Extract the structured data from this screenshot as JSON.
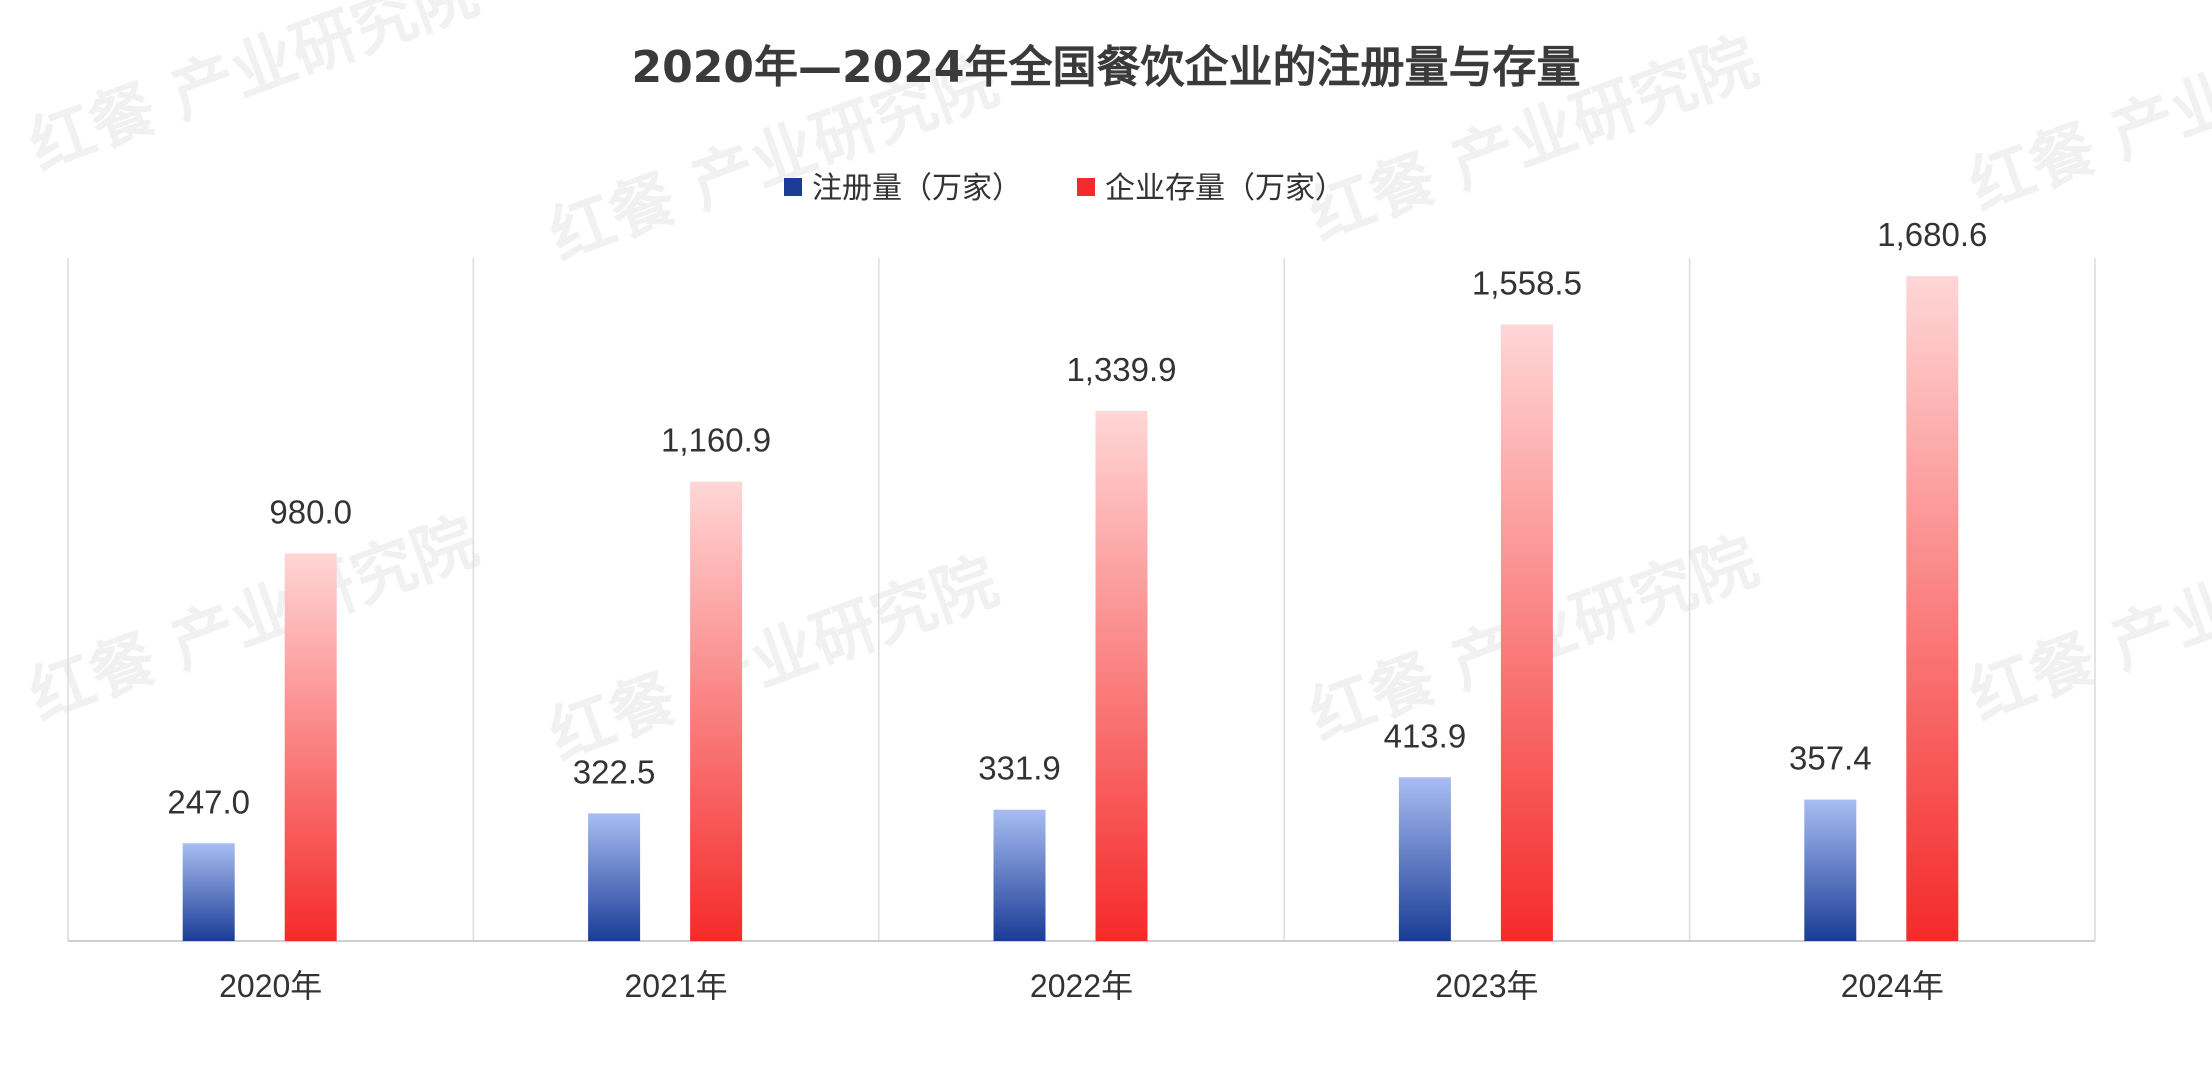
{
  "chart_data": {
    "type": "bar",
    "title": "2020年—2024年全国餐饮企业的注册量与存量",
    "categories": [
      "2020年",
      "2021年",
      "2022年",
      "2023年",
      "2024年"
    ],
    "series": [
      {
        "name": "注册量（万家）",
        "values": [
          247.0,
          322.5,
          331.9,
          413.9,
          357.4
        ],
        "labels": [
          "247.0",
          "322.5",
          "331.9",
          "413.9",
          "357.4"
        ],
        "color_top": "#a8bdf2",
        "color_bottom": "#1b3c96"
      },
      {
        "name": "企业存量（万家）",
        "values": [
          980.0,
          1160.9,
          1339.9,
          1558.5,
          1680.6
        ],
        "labels": [
          "980.0",
          "1,160.9",
          "1,339.9",
          "1,558.5",
          "1,680.6"
        ],
        "color_top": "#ffd6d6",
        "color_bottom": "#f52a2a"
      }
    ],
    "ylim": [
      0,
      1800
    ],
    "grid": false,
    "legend": "top-center",
    "watermark_text": "红餐 产业研究院"
  }
}
